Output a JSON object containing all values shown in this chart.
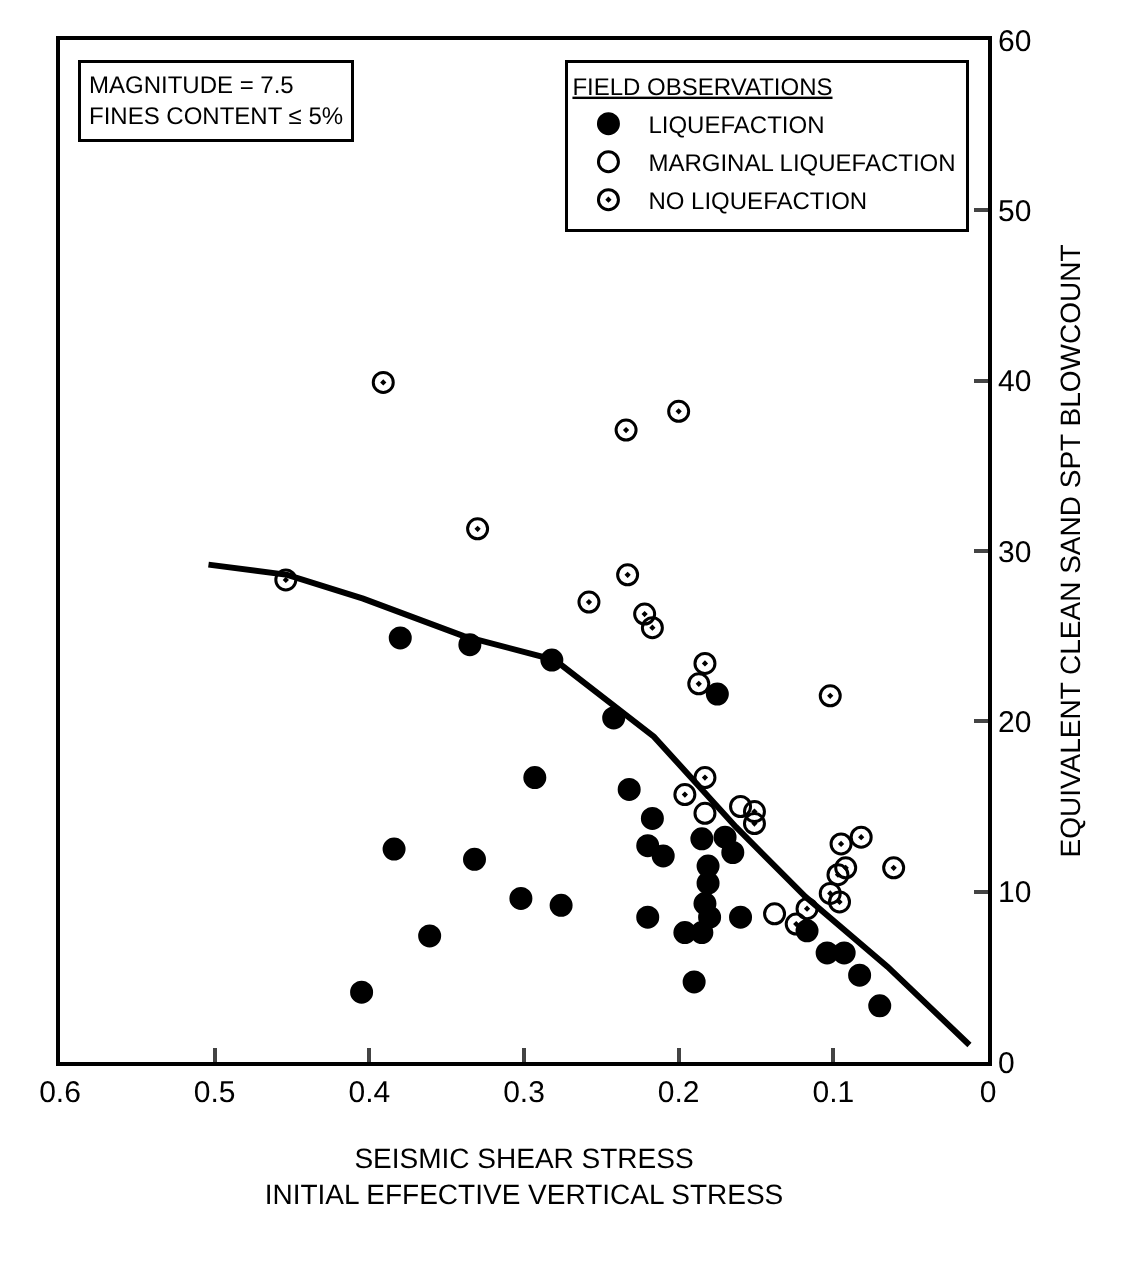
{
  "chart_data": {
    "type": "scatter",
    "xlabel": "SEISMIC SHEAR STRESS\nINITIAL EFFECTIVE VERTICAL STRESS",
    "ylabel": "EQUIVALENT CLEAN SAND SPT BLOWCOUNT",
    "legend_title": "FIELD OBSERVATIONS",
    "legend": "top right",
    "grid": false,
    "marker": "circle",
    "annotations": [
      "MAGNITUDE = 7.5\nFINES CONTENT ≤ 5%"
    ],
    "xlim": [
      0.6,
      0
    ],
    "xticks": [
      0.6,
      0.5,
      0.4,
      0.3,
      0.2,
      0.1,
      0
    ],
    "ylim": [
      0,
      60
    ],
    "yticks": [
      0,
      10,
      20,
      30,
      40,
      50,
      60
    ],
    "series": [
      {
        "name": "LIQUEFACTION",
        "color": "#000000",
        "x": [
          0.405,
          0.361,
          0.384,
          0.38,
          0.335,
          0.332,
          0.302,
          0.276,
          0.293,
          0.282,
          0.242,
          0.232,
          0.217,
          0.22,
          0.21,
          0.22,
          0.19,
          0.196,
          0.185,
          0.183,
          0.181,
          0.185,
          0.175,
          0.17,
          0.165,
          0.16,
          0.117,
          0.104,
          0.093,
          0.083,
          0.07,
          0.181,
          0.18
        ],
        "values": [
          4.1,
          7.4,
          12.5,
          24.9,
          24.5,
          11.9,
          9.6,
          9.2,
          16.7,
          23.6,
          20.2,
          16,
          14.3,
          12.7,
          12.1,
          8.5,
          4.7,
          7.6,
          7.6,
          9.3,
          10.5,
          13.1,
          21.6,
          13.2,
          12.3,
          8.5,
          7.7,
          6.4,
          6.4,
          5.1,
          3.3,
          11.5,
          8.5
        ]
      },
      {
        "name": "MARGINAL LIQUEFACTION",
        "color": "#000000",
        "x": [
          0.183,
          0.138,
          0.16
        ],
        "values": [
          14.6,
          8.7,
          15
        ]
      },
      {
        "name": "NO LIQUEFACTION",
        "color": "#000000",
        "x": [
          0.391,
          0.2,
          0.234,
          0.33,
          0.454,
          0.233,
          0.258,
          0.222,
          0.217,
          0.183,
          0.187,
          0.102,
          0.196,
          0.183,
          0.151,
          0.151,
          0.095,
          0.082,
          0.061,
          0.092,
          0.097,
          0.102,
          0.096,
          0.117,
          0.124
        ],
        "values": [
          39.9,
          38.2,
          37.1,
          31.3,
          28.3,
          28.6,
          27,
          26.3,
          25.5,
          23.4,
          22.2,
          21.5,
          15.7,
          16.7,
          14.7,
          14,
          12.8,
          13.2,
          11.4,
          11.4,
          11,
          9.9,
          9.4,
          9,
          8.1
        ]
      },
      {
        "type": "line",
        "color": "#000000",
        "marker": "none",
        "line_style": "solid",
        "x": [
          0.012,
          0.065,
          0.118,
          0.163,
          0.216,
          0.28,
          0.339,
          0.404,
          0.453,
          0.504
        ],
        "values": [
          1,
          5.6,
          9.7,
          13.8,
          19.1,
          23.6,
          25,
          27.2,
          28.6,
          29.2
        ]
      }
    ]
  }
}
